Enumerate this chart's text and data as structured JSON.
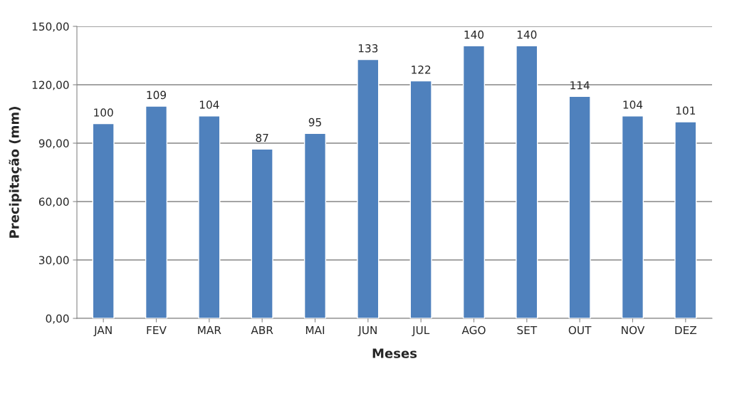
{
  "chart_data": {
    "type": "bar",
    "xlabel": "Meses",
    "ylabel": "Precipitação (mm)",
    "categories": [
      "JAN",
      "FEV",
      "MAR",
      "ABR",
      "MAI",
      "JUN",
      "JUL",
      "AGO",
      "SET",
      "OUT",
      "NOV",
      "DEZ"
    ],
    "values": [
      100,
      109,
      104,
      87,
      95,
      133,
      122,
      140,
      140,
      114,
      104,
      101
    ],
    "color": "#4f81bd",
    "ylim": [
      0,
      150
    ],
    "yticks": [
      {
        "value": 0,
        "label": "0,00"
      },
      {
        "value": 30,
        "label": "30,00"
      },
      {
        "value": 60,
        "label": "60,00"
      },
      {
        "value": 90,
        "label": "90,00"
      },
      {
        "value": 120,
        "label": "120,00"
      },
      {
        "value": 150,
        "label": "150,00"
      }
    ],
    "grid": "y",
    "data_labels": true
  }
}
